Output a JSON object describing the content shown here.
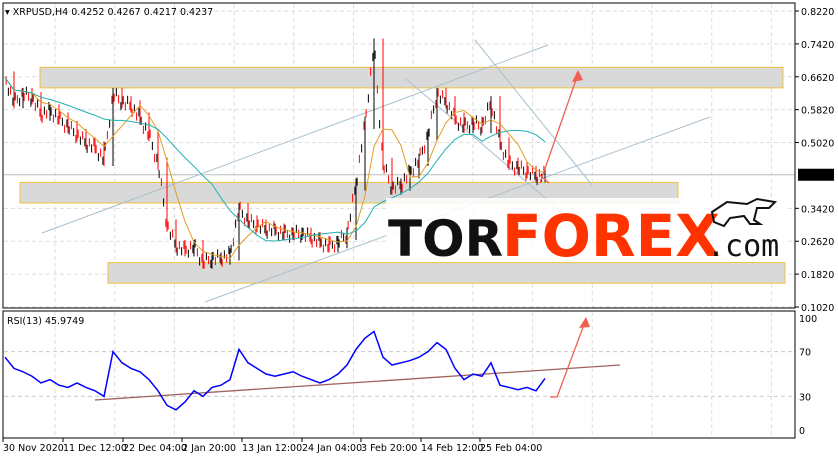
{
  "chart_data": [
    {
      "type": "line",
      "title": "XRPUSD,H4",
      "ohlc_label": "0.4252 0.4267 0.4217 0.4237",
      "current_price": "0.4237",
      "ylim": [
        0.102,
        0.822
      ],
      "y_ticks": [
        "0.8220",
        "0.7420",
        "0.6620",
        "0.5820",
        "0.5020",
        "0.3420",
        "0.2620",
        "0.1820",
        "0.1020"
      ],
      "x_ticks": [
        "30 Nov 2020",
        "11 Dec 12:00",
        "22 Dec 04:00",
        "2 Jan 20:00",
        "13 Jan 12:00",
        "24 Jan 04:00",
        "3 Feb 20:00",
        "14 Feb 12:00",
        "25 Feb 04:00"
      ],
      "grid": true,
      "colors": {
        "bull": "#000000",
        "bear": "#ff0000",
        "ma_fast": "#e0a020",
        "ma_slow": "#20b0b0",
        "zone": "#d9d9d9",
        "zone_border": "#f0c040",
        "trend": "#a8c0d0",
        "arrow": "#f06050"
      },
      "price": [
        0.66,
        0.6,
        0.62,
        0.61,
        0.57,
        0.58,
        0.56,
        0.54,
        0.52,
        0.5,
        0.49,
        0.46,
        0.62,
        0.6,
        0.59,
        0.56,
        0.52,
        0.45,
        0.3,
        0.25,
        0.24,
        0.25,
        0.21,
        0.22,
        0.22,
        0.23,
        0.34,
        0.31,
        0.3,
        0.29,
        0.29,
        0.28,
        0.28,
        0.28,
        0.27,
        0.26,
        0.25,
        0.26,
        0.28,
        0.4,
        0.55,
        0.74,
        0.45,
        0.39,
        0.4,
        0.43,
        0.46,
        0.52,
        0.62,
        0.6,
        0.56,
        0.54,
        0.55,
        0.54,
        0.6,
        0.5,
        0.45,
        0.44,
        0.43,
        0.42,
        0.4237
      ],
      "zones": [
        [
          0.635,
          0.685
        ],
        [
          0.355,
          0.405
        ],
        [
          0.16,
          0.21
        ]
      ]
    },
    {
      "type": "line",
      "title": "RSI(13) 45.9749",
      "ylim": [
        0,
        100
      ],
      "y_ticks": [
        "100",
        "70",
        "30",
        "0"
      ],
      "values": [
        65,
        55,
        52,
        48,
        42,
        45,
        40,
        38,
        42,
        38,
        35,
        30,
        70,
        60,
        55,
        52,
        45,
        35,
        22,
        18,
        25,
        35,
        30,
        38,
        40,
        45,
        72,
        60,
        55,
        50,
        48,
        50,
        52,
        48,
        45,
        42,
        45,
        50,
        58,
        72,
        82,
        88,
        65,
        58,
        60,
        62,
        65,
        70,
        78,
        72,
        55,
        45,
        50,
        48,
        60,
        40,
        38,
        36,
        38,
        35,
        46
      ]
    }
  ],
  "logo": {
    "part1": "TOR",
    "part2": "FOREX",
    "part3": ".com"
  }
}
